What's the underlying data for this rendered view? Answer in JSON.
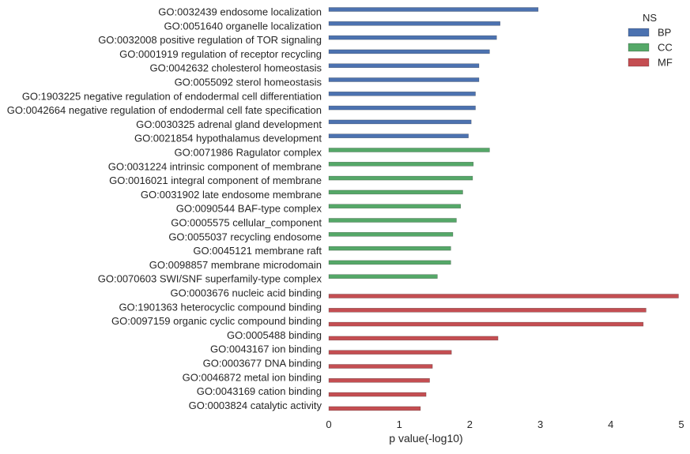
{
  "chart_data": {
    "type": "bar",
    "orientation": "horizontal",
    "xlabel": "p value(-log10)",
    "ylabel": "",
    "title": "",
    "xlim": [
      0,
      5
    ],
    "xticks": [
      "0",
      "1",
      "2",
      "3",
      "4",
      "5"
    ],
    "grid": false,
    "legend": {
      "title": "NS",
      "placement": "top-right",
      "entries": [
        {
          "name": "BP",
          "color": "#4c72b0"
        },
        {
          "name": "CC",
          "color": "#55a868"
        },
        {
          "name": "MF",
          "color": "#c44e52"
        }
      ]
    },
    "bars": [
      {
        "label": "GO:0032439 endosome localization",
        "value": 2.97,
        "series": "BP"
      },
      {
        "label": "GO:0051640 organelle localization",
        "value": 2.43,
        "series": "BP"
      },
      {
        "label": "GO:0032008 positive regulation of TOR signaling",
        "value": 2.38,
        "series": "BP"
      },
      {
        "label": "GO:0001919 regulation of receptor recycling",
        "value": 2.28,
        "series": "BP"
      },
      {
        "label": "GO:0042632 cholesterol homeostasis",
        "value": 2.13,
        "series": "BP"
      },
      {
        "label": "GO:0055092 sterol homeostasis",
        "value": 2.13,
        "series": "BP"
      },
      {
        "label": "GO:1903225 negative regulation of endodermal cell differentiation",
        "value": 2.08,
        "series": "BP"
      },
      {
        "label": "GO:0042664 negative regulation of endodermal cell fate specification",
        "value": 2.08,
        "series": "BP"
      },
      {
        "label": "GO:0030325 adrenal gland development",
        "value": 2.02,
        "series": "BP"
      },
      {
        "label": "GO:0021854 hypothalamus development",
        "value": 1.98,
        "series": "BP"
      },
      {
        "label": "GO:0071986 Ragulator complex",
        "value": 2.28,
        "series": "CC"
      },
      {
        "label": "GO:0031224 intrinsic component of membrane",
        "value": 2.05,
        "series": "CC"
      },
      {
        "label": "GO:0016021 integral component of membrane",
        "value": 2.04,
        "series": "CC"
      },
      {
        "label": "GO:0031902 late endosome membrane",
        "value": 1.9,
        "series": "CC"
      },
      {
        "label": "GO:0090544 BAF-type complex",
        "value": 1.87,
        "series": "CC"
      },
      {
        "label": "GO:0005575 cellular_component",
        "value": 1.81,
        "series": "CC"
      },
      {
        "label": "GO:0055037 recycling endosome",
        "value": 1.76,
        "series": "CC"
      },
      {
        "label": "GO:0045121 membrane raft",
        "value": 1.73,
        "series": "CC"
      },
      {
        "label": "GO:0098857 membrane microdomain",
        "value": 1.73,
        "series": "CC"
      },
      {
        "label": "GO:0070603 SWI/SNF superfamily-type complex",
        "value": 1.54,
        "series": "CC"
      },
      {
        "label": "GO:0003676 nucleic acid binding",
        "value": 4.96,
        "series": "MF"
      },
      {
        "label": "GO:1901363 heterocyclic compound binding",
        "value": 4.5,
        "series": "MF"
      },
      {
        "label": "GO:0097159 organic cyclic compound binding",
        "value": 4.46,
        "series": "MF"
      },
      {
        "label": "GO:0005488 binding",
        "value": 2.4,
        "series": "MF"
      },
      {
        "label": "GO:0043167 ion binding",
        "value": 1.74,
        "series": "MF"
      },
      {
        "label": "GO:0003677 DNA binding",
        "value": 1.47,
        "series": "MF"
      },
      {
        "label": "GO:0046872 metal ion binding",
        "value": 1.43,
        "series": "MF"
      },
      {
        "label": "GO:0043169 cation binding",
        "value": 1.38,
        "series": "MF"
      },
      {
        "label": "GO:0003824 catalytic activity",
        "value": 1.3,
        "series": "MF"
      }
    ]
  }
}
